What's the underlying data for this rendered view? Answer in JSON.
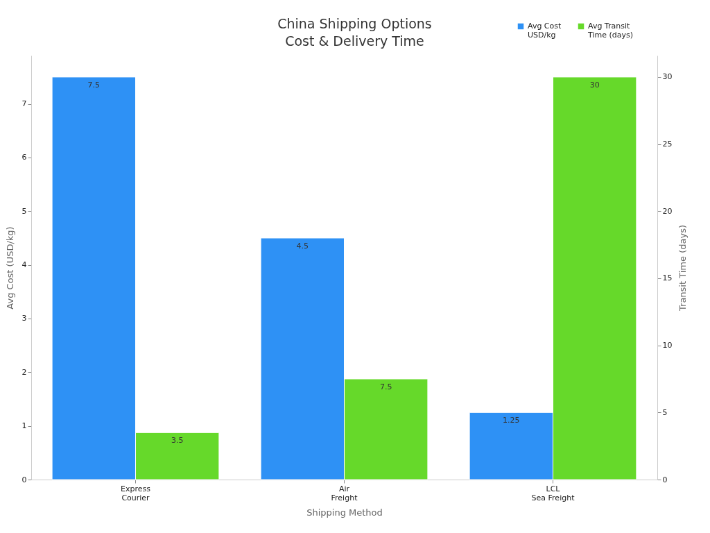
{
  "chart_data": {
    "type": "bar",
    "title": "China Shipping Options\nCost & Delivery Time",
    "xlabel": "Shipping Method",
    "ylabel": "Avg Cost (USD/kg)",
    "y2label": "Transit Time (days)",
    "categories": [
      "Express\nCourier",
      "Air\nFreight",
      "LCL\nSea Freight"
    ],
    "series": [
      {
        "name": "Avg Cost\nUSD/kg",
        "color": "#2e91f5",
        "values": [
          7.5,
          4.5,
          1.25
        ]
      },
      {
        "name": "Avg Transit\nTime (days)",
        "color": "#66d92a",
        "values": [
          3.5,
          7.5,
          30
        ],
        "axis": "y2"
      }
    ],
    "ylim": [
      0,
      7.9
    ],
    "yticks": [
      0,
      1,
      2,
      3,
      4,
      5,
      6,
      7
    ],
    "y2lim": [
      0,
      31.6
    ],
    "y2ticks": [
      0,
      5,
      10,
      15,
      20,
      25,
      30
    ],
    "data_labels": true,
    "grid": false,
    "legend": "top right"
  }
}
